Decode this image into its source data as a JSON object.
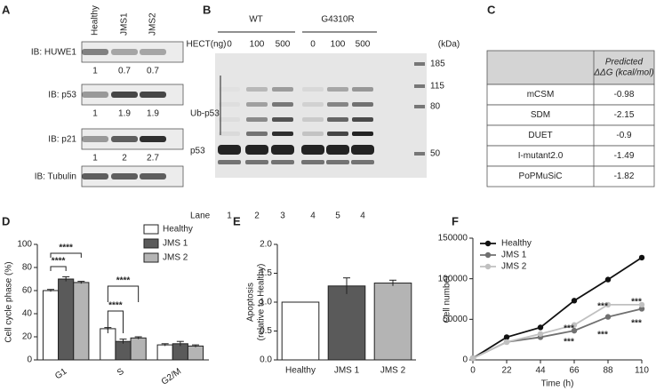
{
  "panel_labels": [
    "A",
    "B",
    "C",
    "D",
    "E",
    "F"
  ],
  "blot_a": {
    "lanes": [
      "Healthy",
      "JMS1",
      "JMS2"
    ],
    "blots": [
      {
        "label": "IB: HUWE1",
        "quant": [
          1,
          0.7,
          0.7
        ]
      },
      {
        "label": "IB: p53",
        "quant": [
          1,
          1.9,
          1.9
        ]
      },
      {
        "label": "IB: p21",
        "quant": [
          1,
          2,
          2.7
        ]
      },
      {
        "label": "IB: Tubulin"
      }
    ]
  },
  "blot_b": {
    "groups": [
      "WT",
      "G4310R"
    ],
    "hect_label": "HECT(ng)",
    "hect": [
      0,
      100,
      500,
      0,
      100,
      500
    ],
    "kda_label": "(kDa)",
    "kda": [
      185,
      115,
      80,
      50
    ],
    "ub_label": "Ub-p53",
    "p53_label": "p53",
    "lane_label": "Lane",
    "lanes": [
      1,
      2,
      3,
      4,
      5,
      4
    ]
  },
  "table_c": {
    "header": [
      "Predicted",
      "ΔΔG (kcal/mol)"
    ],
    "rows": [
      [
        "mCSM",
        -0.98
      ],
      [
        "SDM",
        -2.15
      ],
      [
        "DUET",
        -0.9
      ],
      [
        "I-mutant2.0",
        -1.49
      ],
      [
        "PoPMuSiC",
        -1.82
      ]
    ]
  },
  "chart_data": [
    {
      "type": "bar",
      "ylabel": "Cell cycle phase (%)",
      "categories": [
        "G1",
        "S",
        "G2/M"
      ],
      "series": [
        {
          "name": "Healthy",
          "color": "#ffffff",
          "values": [
            60,
            27,
            13
          ],
          "errors": [
            1,
            1,
            1
          ]
        },
        {
          "name": "JMS 1",
          "color": "#5a5a5a",
          "values": [
            70,
            16,
            14
          ],
          "errors": [
            2,
            2,
            2
          ]
        },
        {
          "name": "JMS 2",
          "color": "#b4b4b4",
          "values": [
            67,
            19,
            12
          ],
          "errors": [
            1,
            1,
            1
          ]
        }
      ],
      "ylim": [
        0,
        100
      ],
      "yticks": [
        0,
        20,
        40,
        60,
        80,
        100
      ],
      "annotations": [
        "****",
        "****",
        "****",
        "****"
      ]
    },
    {
      "type": "bar",
      "ylabel": [
        "Apoptosis",
        "(relative to Healthy)"
      ],
      "categories": [
        "Healthy",
        "JMS 1",
        "JMS 2"
      ],
      "values": [
        1,
        1.28,
        1.33
      ],
      "errors": [
        0,
        0.14,
        0.05
      ],
      "colors": [
        "#ffffff",
        "#5a5a5a",
        "#b4b4b4"
      ],
      "ylim": [
        0,
        2
      ],
      "yticks": [
        {
          "value": 0,
          "label": "0.0"
        },
        {
          "value": 0.5,
          "label": "0.5"
        },
        {
          "value": 1,
          "label": "1.0"
        },
        {
          "value": 1.5,
          "label": "1.5"
        },
        {
          "value": 2,
          "label": "2.0"
        }
      ]
    },
    {
      "type": "line",
      "xlabel": "Time (h)",
      "ylabel": "Cell number",
      "x": [
        0,
        22,
        44,
        66,
        88,
        110
      ],
      "series": [
        {
          "name": "Healthy",
          "color": "#111111",
          "values": [
            2000,
            28000,
            40000,
            73000,
            99000,
            126000
          ]
        },
        {
          "name": "JMS 1",
          "color": "#707070",
          "values": [
            2000,
            22000,
            28000,
            36000,
            53000,
            63000
          ]
        },
        {
          "name": "JMS 2",
          "color": "#c0c0c0",
          "values": [
            2000,
            22000,
            32000,
            43000,
            68000,
            68000
          ]
        }
      ],
      "xlim": [
        0,
        110
      ],
      "xticks": [
        0,
        22,
        44,
        66,
        88,
        110
      ],
      "ylim": [
        0,
        150000
      ],
      "yticks": [
        0,
        50000,
        100000,
        150000
      ],
      "legend": "upper left",
      "annotations": [
        "***",
        "***",
        "***",
        "***",
        "***",
        "***"
      ]
    }
  ]
}
